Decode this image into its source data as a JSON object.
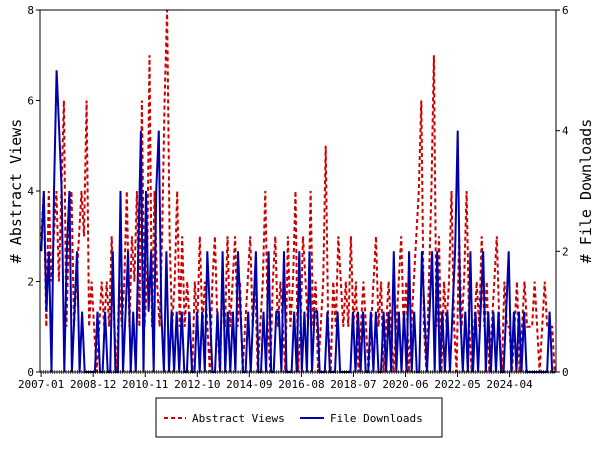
{
  "chart_data": {
    "type": "line",
    "x_tick_labels": [
      "2007-01",
      "2008-12",
      "2010-11",
      "2012-10",
      "2014-09",
      "2016-08",
      "2018-07",
      "2020-06",
      "2022-05",
      "2024-04"
    ],
    "x_range": [
      "2007-01",
      "2025-12"
    ],
    "ylabel_left": "# Abstract Views",
    "ylabel_right": "# File Downloads",
    "ylim_left": [
      0,
      8
    ],
    "ylim_right": [
      0,
      6
    ],
    "yticks_left": [
      0,
      2,
      4,
      6,
      8
    ],
    "yticks_right": [
      0,
      2,
      4,
      6
    ],
    "legend_position": "bottom-center",
    "grid": false,
    "series": [
      {
        "name": "Abstract Views",
        "axis": "left",
        "color": "#cc0000",
        "style": "dashed",
        "values": [
          3,
          4,
          1,
          4,
          2,
          3,
          4,
          2,
          4,
          6,
          1,
          3,
          4,
          1,
          2,
          3,
          4,
          3,
          6,
          1,
          2,
          1,
          0,
          1,
          2,
          1,
          2,
          1,
          3,
          1,
          0,
          2,
          1,
          2,
          4,
          1,
          3,
          2,
          4,
          1,
          6,
          1,
          2,
          7,
          1,
          4,
          2,
          1,
          3,
          6,
          8,
          3,
          1,
          2,
          4,
          1,
          3,
          1,
          2,
          1,
          0,
          2,
          1,
          3,
          1,
          2,
          1,
          0,
          2,
          3,
          1,
          0,
          2,
          1,
          3,
          1,
          2,
          3,
          1,
          2,
          0,
          1,
          2,
          3,
          1,
          2,
          0,
          1,
          2,
          4,
          1,
          0,
          2,
          3,
          1,
          2,
          1,
          0,
          3,
          1,
          2,
          4,
          0,
          1,
          3,
          2,
          1,
          4,
          1,
          2,
          0,
          1,
          2,
          5,
          1,
          0,
          2,
          1,
          3,
          2,
          1,
          2,
          1,
          3,
          1,
          2,
          0,
          1,
          2,
          1,
          0,
          1,
          2,
          3,
          1,
          2,
          0,
          1,
          2,
          1,
          0,
          1,
          2,
          3,
          1,
          2,
          0,
          1,
          2,
          3,
          4,
          6,
          1,
          0,
          2,
          4,
          7,
          1,
          3,
          0,
          2,
          1,
          2,
          4,
          1,
          0,
          3,
          1,
          2,
          4,
          1,
          0,
          1,
          2,
          1,
          3,
          1,
          2,
          0,
          1,
          2,
          3,
          1,
          0,
          2,
          1,
          1,
          0,
          1,
          2,
          0,
          1,
          2,
          1,
          1,
          1,
          2,
          1,
          0,
          1,
          2,
          1,
          1,
          1,
          0
        ]
      },
      {
        "name": "File Downloads",
        "axis": "right",
        "color": "#0000aa",
        "style": "solid",
        "values": [
          2,
          3,
          1,
          2,
          0,
          3,
          5,
          4,
          3,
          0,
          2,
          3,
          0,
          1,
          2,
          0,
          1,
          0,
          0,
          0,
          0,
          0,
          1,
          0,
          0,
          1,
          0,
          0,
          2,
          0,
          0,
          3,
          0,
          1,
          2,
          0,
          1,
          0,
          2,
          4,
          0,
          3,
          1,
          2,
          0,
          3,
          4,
          1,
          0,
          2,
          0,
          1,
          0,
          1,
          0,
          1,
          0,
          0,
          1,
          0,
          0,
          1,
          0,
          1,
          0,
          2,
          1,
          0,
          0,
          1,
          0,
          2,
          0,
          1,
          0,
          1,
          0,
          2,
          1,
          0,
          0,
          1,
          0,
          1,
          2,
          0,
          0,
          1,
          0,
          2,
          0,
          0,
          1,
          1,
          0,
          2,
          0,
          0,
          0,
          1,
          0,
          2,
          0,
          1,
          0,
          2,
          0,
          1,
          1,
          0,
          0,
          0,
          1,
          0,
          0,
          0,
          1,
          0,
          0,
          0,
          0,
          0,
          1,
          0,
          1,
          0,
          1,
          0,
          0,
          1,
          0,
          1,
          0,
          0,
          1,
          0,
          1,
          0,
          2,
          0,
          1,
          0,
          1,
          0,
          2,
          0,
          1,
          0,
          0,
          2,
          1,
          0,
          1,
          2,
          0,
          2,
          0,
          1,
          0,
          1,
          0,
          1,
          2,
          4,
          1,
          0,
          1,
          0,
          2,
          0,
          1,
          0,
          1,
          2,
          0,
          1,
          0,
          1,
          0,
          1,
          0,
          0,
          1,
          2,
          0,
          1,
          0,
          1,
          0,
          1,
          0,
          0,
          0,
          0,
          0,
          0,
          0,
          0,
          0,
          1,
          0,
          0
        ]
      }
    ]
  }
}
